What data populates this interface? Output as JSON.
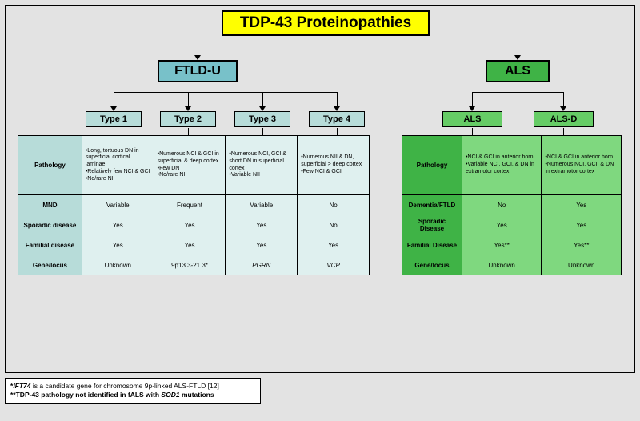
{
  "title": "TDP-43 Proteinopathies",
  "ftld": {
    "label": "FTLD-U",
    "types": [
      "Type 1",
      "Type 2",
      "Type 3",
      "Type 4"
    ],
    "rows": {
      "pathology": {
        "label": "Pathology",
        "vals": [
          "•Long, tortuous DN in superficial cortical laminae\n•Relatively few NCI & GCI\n•No/rare NII",
          "•Numerous NCI & GCI in superficial & deep cortex\n•Few DN\n•No/rare NII",
          "•Numerous NCI, GCI & short DN in superficial cortex\n•Variable NII",
          "•Numerous NII & DN, superficial > deep cortex\n•Few NCI & GCI"
        ]
      },
      "mnd": {
        "label": "MND",
        "vals": [
          "Variable",
          "Frequent",
          "Variable",
          "No"
        ]
      },
      "sporadic": {
        "label": "Sporadic disease",
        "vals": [
          "Yes",
          "Yes",
          "Yes",
          "No"
        ]
      },
      "familial": {
        "label": "Familial disease",
        "vals": [
          "Yes",
          "Yes",
          "Yes",
          "Yes"
        ]
      },
      "gene": {
        "label": "Gene/locus",
        "vals": [
          "Unknown",
          "9p13.3-21.3*",
          "PGRN",
          "VCP"
        ]
      }
    }
  },
  "als": {
    "label": "ALS",
    "types": [
      "ALS",
      "ALS-D"
    ],
    "rows": {
      "pathology": {
        "label": "Pathology",
        "vals": [
          "•NCI & GCI in anterior horn\n•Variable NCI, GCI, & DN in extramotor cortex",
          "•NCI & GCI in anterior horn\n•Numerous NCI, GCI, & DN in extramotor cortex"
        ]
      },
      "dementia": {
        "label": "Dementia/FTLD",
        "vals": [
          "No",
          "Yes"
        ]
      },
      "sporadic": {
        "label": "Sporadic Disease",
        "vals": [
          "Yes",
          "Yes"
        ]
      },
      "familial": {
        "label": "Familial Disease",
        "vals": [
          "Yes**",
          "Yes**"
        ]
      },
      "gene": {
        "label": "Gene/locus",
        "vals": [
          "Unknown",
          "Unknown"
        ]
      }
    }
  },
  "footnotes": {
    "f1": "*IFT74 is a candidate gene for chromosome 9p-linked ALS-FTLD [12]",
    "f2": "**TDP-43 pathology not identified in fALS with SOD1 mutations"
  },
  "colors": {
    "root_bg": "#ffff00",
    "ftld_bar": "#78c1c9",
    "ftld_type": "#b7dcd9",
    "ftld_cell": "#dff0ef",
    "als_bar": "#3fb346",
    "als_type": "#66cc66",
    "als_cell": "#7fd87f",
    "outer_bg": "#e3e3e3"
  }
}
